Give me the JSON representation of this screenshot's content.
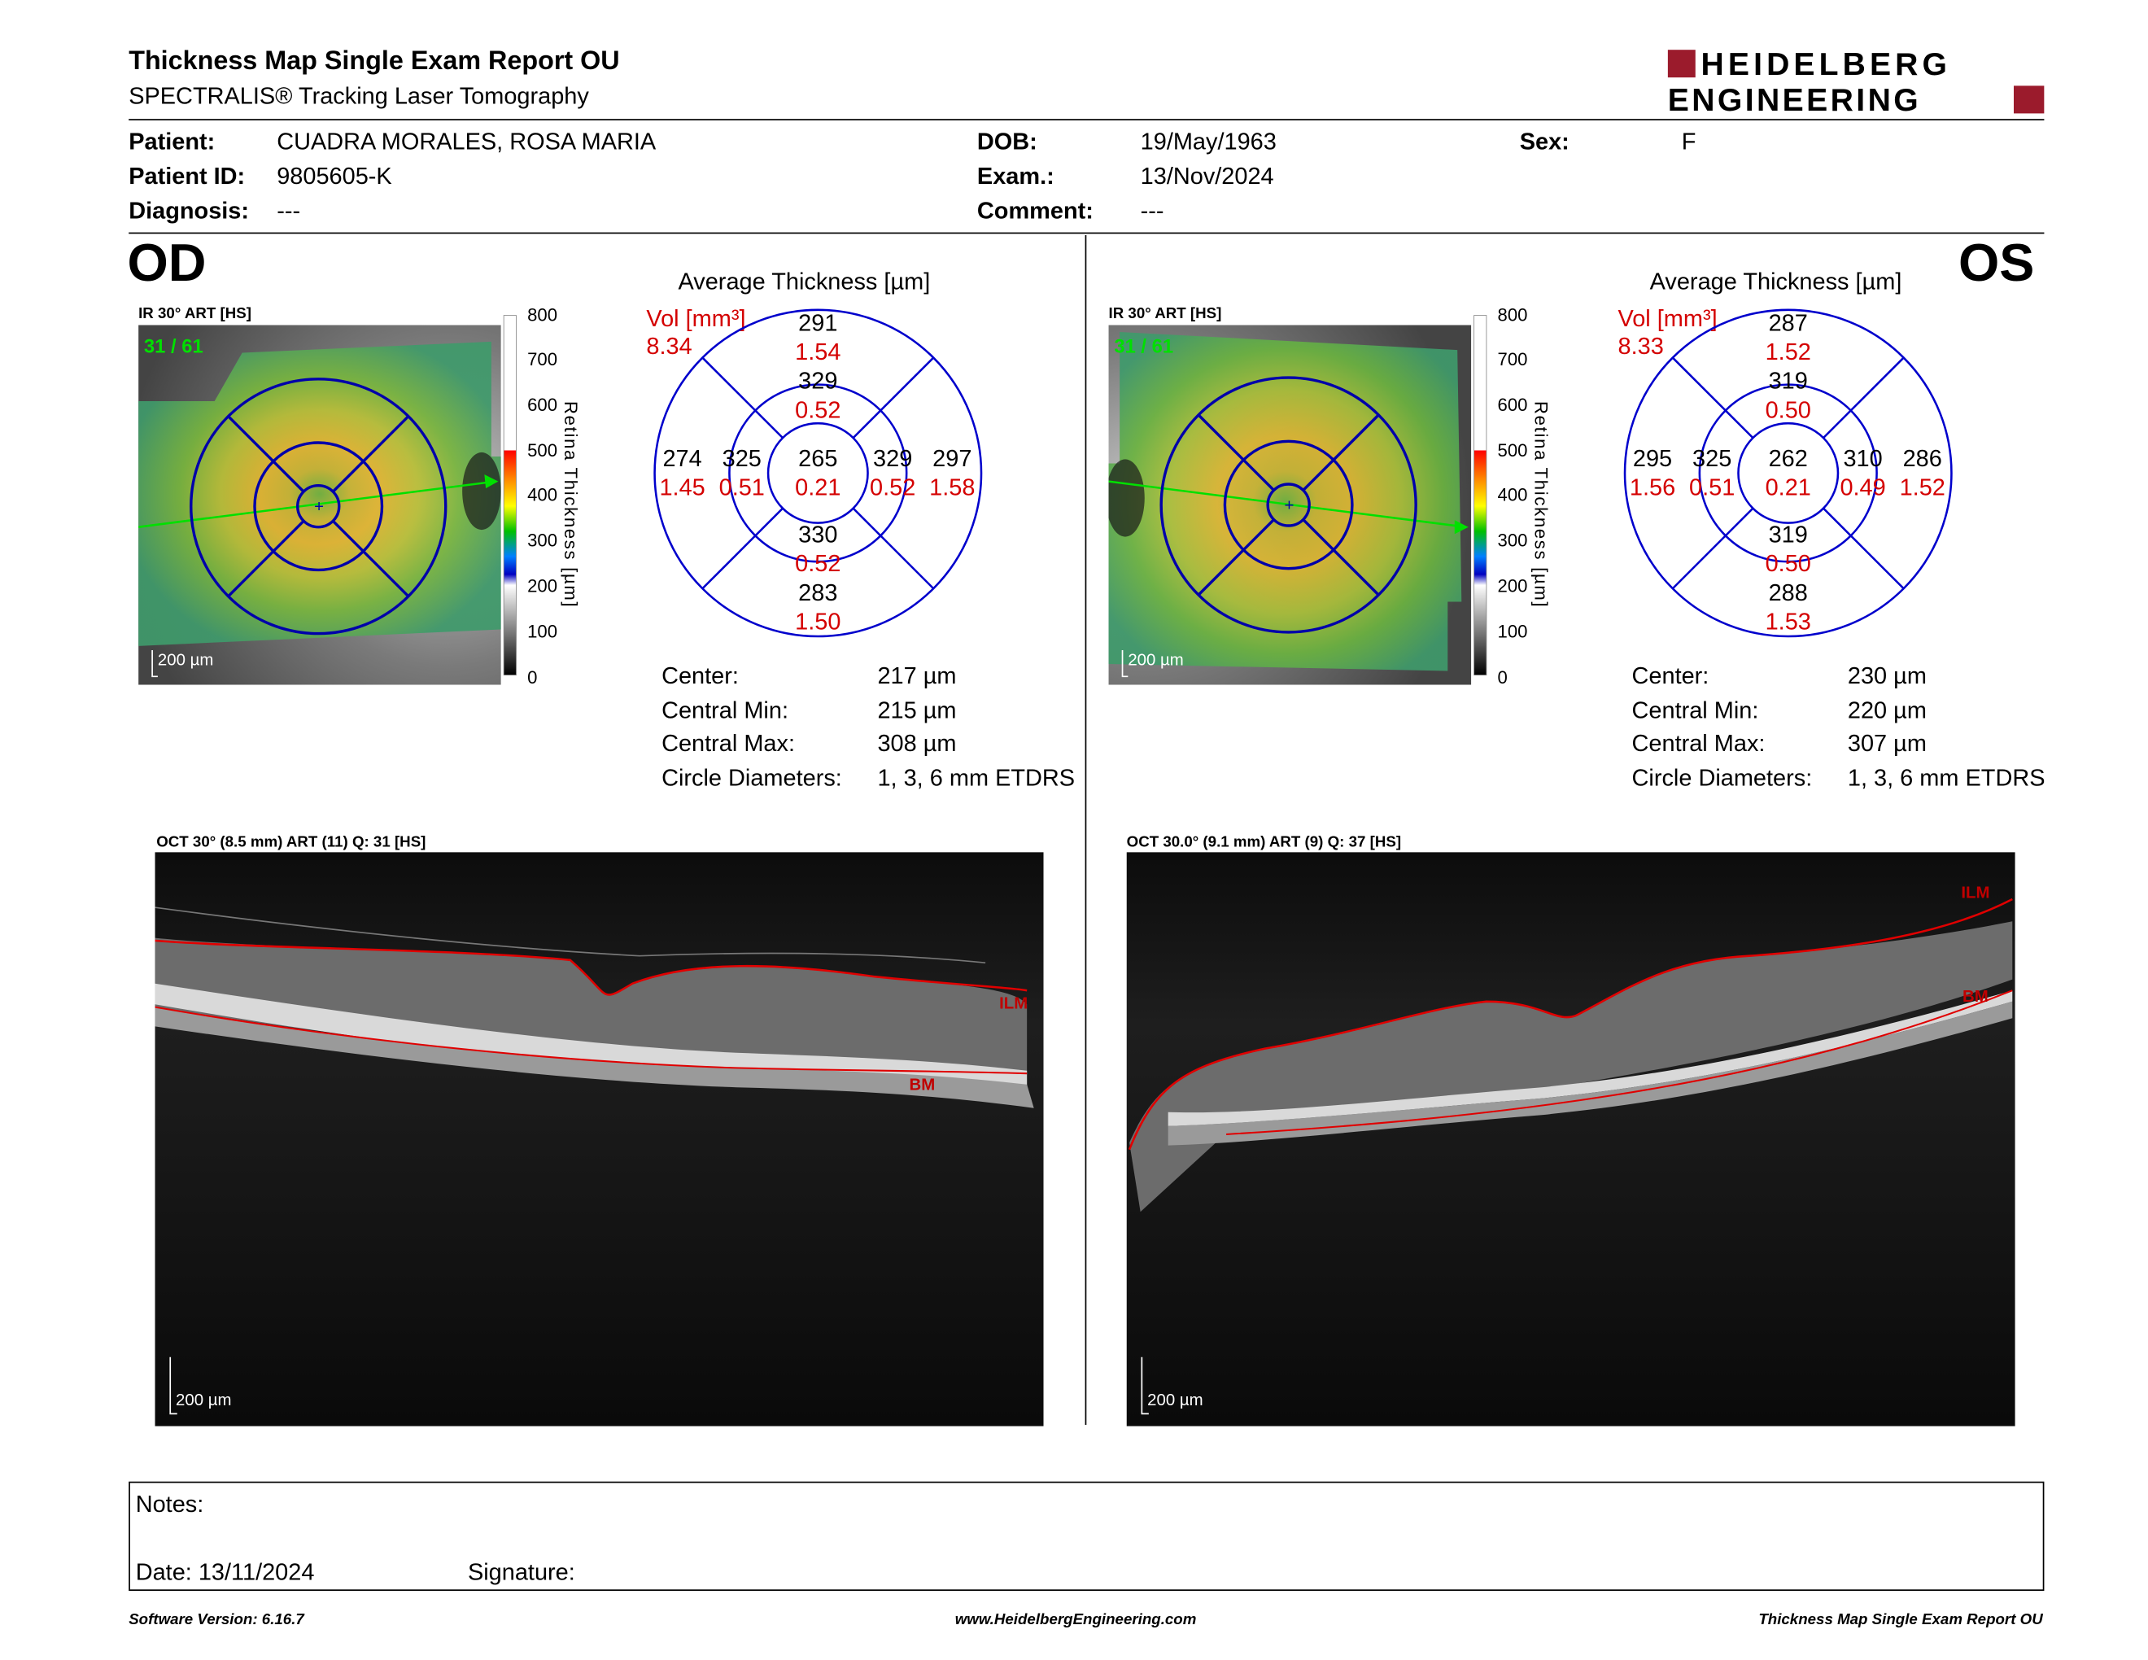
{
  "header": {
    "title": "Thickness Map Single Exam Report OU",
    "subtitle": "SPECTRALIS® Tracking Laser Tomography",
    "logo_line1": "HEIDELBERG",
    "logo_line2": "ENGINEERING"
  },
  "patient": {
    "patient_label": "Patient:",
    "patient_value": "CUADRA MORALES, ROSA MARIA",
    "id_label": "Patient ID:",
    "id_value": "9805605-K",
    "diag_label": "Diagnosis:",
    "diag_value": "---",
    "dob_label": "DOB:",
    "dob_value": "19/May/1963",
    "exam_label": "Exam.:",
    "exam_value": "13/Nov/2024",
    "comment_label": "Comment:",
    "comment_value": "---",
    "sex_label": "Sex:",
    "sex_value": "F"
  },
  "od": {
    "eye": "OD",
    "ir_label": "IR 30° ART [HS]",
    "frame": "31 / 61",
    "scalebar": "200 µm",
    "avg_title": "Average Thickness [µm]",
    "vol_label": "Vol [mm³]",
    "vol_total": "8.34",
    "sectors": {
      "center_t": "265",
      "center_v": "0.21",
      "inner_sup_t": "329",
      "inner_sup_v": "0.52",
      "inner_inf_t": "330",
      "inner_inf_v": "0.52",
      "inner_left_t": "325",
      "inner_left_v": "0.51",
      "inner_right_t": "329",
      "inner_right_v": "0.52",
      "outer_sup_t": "291",
      "outer_sup_v": "1.54",
      "outer_inf_t": "283",
      "outer_inf_v": "1.50",
      "outer_left_t": "274",
      "outer_left_v": "1.45",
      "outer_right_t": "297",
      "outer_right_v": "1.58"
    },
    "stats": {
      "center_label": "Center:",
      "center_value": "217 µm",
      "min_label": "Central Min:",
      "min_value": "215 µm",
      "max_label": "Central Max:",
      "max_value": "308 µm",
      "diam_label": "Circle Diameters:",
      "diam_value": "1, 3, 6 mm ETDRS"
    },
    "oct_label": "OCT 30° (8.5 mm) ART (11) Q: 31 [HS]",
    "oct_scalebar": "200 µm",
    "ilm": "ILM",
    "bm": "BM"
  },
  "os": {
    "eye": "OS",
    "ir_label": "IR 30° ART [HS]",
    "frame": "31 / 61",
    "scalebar": "200 µm",
    "avg_title": "Average Thickness [µm]",
    "vol_label": "Vol [mm³]",
    "vol_total": "8.33",
    "sectors": {
      "center_t": "262",
      "center_v": "0.21",
      "inner_sup_t": "319",
      "inner_sup_v": "0.50",
      "inner_inf_t": "319",
      "inner_inf_v": "0.50",
      "inner_left_t": "325",
      "inner_left_v": "0.51",
      "inner_right_t": "310",
      "inner_right_v": "0.49",
      "outer_sup_t": "287",
      "outer_sup_v": "1.52",
      "outer_inf_t": "288",
      "outer_inf_v": "1.53",
      "outer_left_t": "295",
      "outer_left_v": "1.56",
      "outer_right_t": "286",
      "outer_right_v": "1.52"
    },
    "stats": {
      "center_label": "Center:",
      "center_value": "230 µm",
      "min_label": "Central Min:",
      "min_value": "220 µm",
      "max_label": "Central Max:",
      "max_value": "307 µm",
      "diam_label": "Circle Diameters:",
      "diam_value": "1, 3, 6 mm ETDRS"
    },
    "oct_label": "OCT 30.0° (9.1 mm) ART (9) Q: 37 [HS]",
    "oct_scalebar": "200 µm",
    "ilm": "ILM",
    "bm": "BM"
  },
  "colorbar": {
    "ticks": [
      "800",
      "700",
      "600",
      "500",
      "400",
      "300",
      "200",
      "100",
      "0"
    ],
    "axis_label": "Retina Thickness [µm]"
  },
  "notes": {
    "notes_label": "Notes:",
    "date_label": "Date: 13/11/2024",
    "signature_label": "Signature:"
  },
  "footer": {
    "version": "Software Version: 6.16.7",
    "url": "www.HeidelbergEngineering.com",
    "report": "Thickness Map Single Exam Report OU"
  }
}
